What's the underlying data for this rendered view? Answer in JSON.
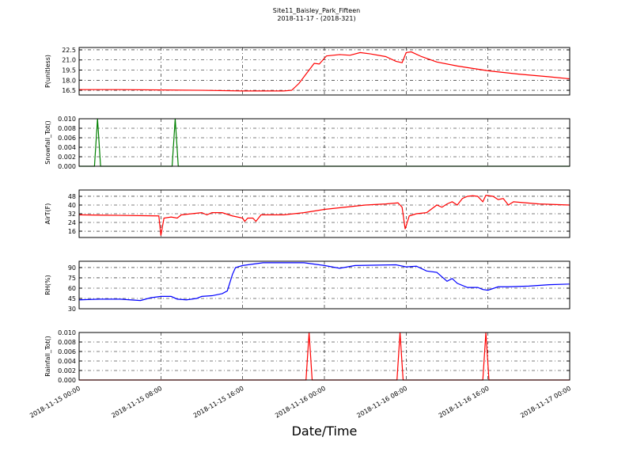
{
  "title": "Site11_Baisley_Park_Fifteen",
  "subtitle": "2018-11-17 - (2018-321)",
  "xlabel": "Date/Time",
  "xlim": [
    "2018-11-15 00:00",
    "2018-11-17 00:00"
  ],
  "xticks": [
    "2018-11-15 00:00",
    "2018-11-15 08:00",
    "2018-11-15 16:00",
    "2018-11-16 00:00",
    "2018-11-16 08:00",
    "2018-11-16 16:00",
    "2018-11-17 00:00"
  ],
  "chart_data": [
    {
      "type": "line",
      "ylabel": "P(unitless)",
      "color": "#ff0000",
      "grid": true,
      "ylim": [
        15.8,
        22.85
      ],
      "yticks": [
        {
          "value": 16.5,
          "label": "16.5"
        },
        {
          "value": 18,
          "label": "18.0"
        },
        {
          "value": 19.5,
          "label": "19.5"
        },
        {
          "value": 21,
          "label": "21.0"
        },
        {
          "value": 22.5,
          "label": "22.5"
        }
      ],
      "x": [
        "2018-11-15 00:00",
        "2018-11-15 04:00",
        "2018-11-15 08:00",
        "2018-11-15 12:00",
        "2018-11-15 16:00",
        "2018-11-15 20:00",
        "2018-11-15 20:48",
        "2018-11-15 21:30",
        "2018-11-15 22:00",
        "2018-11-15 22:30",
        "2018-11-15 23:00",
        "2018-11-15 23:30",
        "2018-11-16 00:12",
        "2018-11-16 01:30",
        "2018-11-16 02:30",
        "2018-11-16 03:30",
        "2018-11-16 04:30",
        "2018-11-16 06:00",
        "2018-11-16 07:00",
        "2018-11-16 07:36",
        "2018-11-16 08:00",
        "2018-11-16 08:30",
        "2018-11-16 09:30",
        "2018-11-16 11:00",
        "2018-11-16 13:00",
        "2018-11-16 16:00",
        "2018-11-16 19:00",
        "2018-11-16 22:00",
        "2018-11-17 00:00"
      ],
      "values": [
        16.6,
        16.6,
        16.55,
        16.5,
        16.4,
        16.4,
        16.5,
        17.5,
        18.5,
        19.5,
        20.5,
        20.4,
        21.6,
        21.8,
        21.7,
        22.1,
        21.9,
        21.5,
        20.8,
        20.6,
        22.1,
        22.2,
        21.5,
        20.7,
        20.1,
        19.4,
        18.9,
        18.5,
        18.2
      ]
    },
    {
      "type": "line",
      "ylabel": "Snowfall_Tot()",
      "color": "#008000",
      "grid": true,
      "ylim": [
        0,
        0.01
      ],
      "yticks": [
        {
          "value": 0,
          "label": "0.000"
        },
        {
          "value": 0.002,
          "label": "0.002"
        },
        {
          "value": 0.004,
          "label": "0.004"
        },
        {
          "value": 0.006,
          "label": "0.006"
        },
        {
          "value": 0.008,
          "label": "0.008"
        },
        {
          "value": 0.01,
          "label": "0.010"
        }
      ],
      "x": [
        "2018-11-15 00:00",
        "2018-11-15 01:30",
        "2018-11-15 01:48",
        "2018-11-15 02:06",
        "2018-11-15 09:06",
        "2018-11-15 09:24",
        "2018-11-15 09:42",
        "2018-11-17 00:00"
      ],
      "values": [
        0,
        0,
        0.01,
        0,
        0,
        0.01,
        0,
        0
      ]
    },
    {
      "type": "line",
      "ylabel": "AirT(F)",
      "color": "#ff0000",
      "grid": true,
      "ylim": [
        10.2,
        53.8
      ],
      "yticks": [
        16,
        24,
        32,
        40,
        48
      ],
      "x": [
        "2018-11-15 00:00",
        "2018-11-15 04:00",
        "2018-11-15 07:48",
        "2018-11-15 08:00",
        "2018-11-15 08:18",
        "2018-11-15 09:00",
        "2018-11-15 09:36",
        "2018-11-15 10:00",
        "2018-11-15 12:00",
        "2018-11-15 12:30",
        "2018-11-15 13:00",
        "2018-11-15 14:00",
        "2018-11-15 15:00",
        "2018-11-15 16:00",
        "2018-11-15 16:12",
        "2018-11-15 16:30",
        "2018-11-15 17:00",
        "2018-11-15 17:18",
        "2018-11-15 17:48",
        "2018-11-15 20:00",
        "2018-11-15 22:00",
        "2018-11-16 00:00",
        "2018-11-16 02:00",
        "2018-11-16 04:00",
        "2018-11-16 06:00",
        "2018-11-16 07:12",
        "2018-11-16 07:36",
        "2018-11-16 07:54",
        "2018-11-16 08:18",
        "2018-11-16 09:00",
        "2018-11-16 10:00",
        "2018-11-16 11:00",
        "2018-11-16 11:30",
        "2018-11-16 12:00",
        "2018-11-16 12:30",
        "2018-11-16 13:00",
        "2018-11-16 13:30",
        "2018-11-16 14:00",
        "2018-11-16 14:30",
        "2018-11-16 15:00",
        "2018-11-16 15:30",
        "2018-11-16 15:48",
        "2018-11-16 16:30",
        "2018-11-16 17:00",
        "2018-11-16 17:30",
        "2018-11-16 18:00",
        "2018-11-16 18:30",
        "2018-11-16 21:00",
        "2018-11-17 00:00"
      ],
      "values": [
        31,
        30.5,
        30,
        12,
        28,
        29,
        28,
        31,
        33,
        31,
        33,
        33,
        30,
        28,
        25,
        28,
        28,
        25,
        31,
        31,
        33,
        36,
        38,
        40,
        41,
        42,
        38,
        18,
        30,
        32,
        33,
        40,
        38,
        41,
        43,
        40,
        46,
        48,
        48.5,
        48,
        43,
        49,
        48,
        45,
        46,
        40,
        43,
        41,
        40
      ]
    },
    {
      "type": "line",
      "ylabel": "RH(%)",
      "color": "#0000ff",
      "grid": true,
      "ylim": [
        30,
        99.2
      ],
      "yticks": [
        30,
        45,
        60,
        75,
        90
      ],
      "x": [
        "2018-11-15 00:00",
        "2018-11-15 02:00",
        "2018-11-15 04:00",
        "2018-11-15 05:00",
        "2018-11-15 06:00",
        "2018-11-15 07:00",
        "2018-11-15 08:00",
        "2018-11-15 09:00",
        "2018-11-15 09:36",
        "2018-11-15 10:30",
        "2018-11-15 11:30",
        "2018-11-15 12:00",
        "2018-11-15 13:00",
        "2018-11-15 14:00",
        "2018-11-15 14:30",
        "2018-11-15 15:00",
        "2018-11-15 15:18",
        "2018-11-15 16:00",
        "2018-11-15 17:00",
        "2018-11-15 18:00",
        "2018-11-15 22:00",
        "2018-11-16 00:00",
        "2018-11-16 01:30",
        "2018-11-16 03:00",
        "2018-11-16 07:00",
        "2018-11-16 08:00",
        "2018-11-16 09:00",
        "2018-11-16 10:00",
        "2018-11-16 11:00",
        "2018-11-16 12:00",
        "2018-11-16 12:30",
        "2018-11-16 13:00",
        "2018-11-16 14:00",
        "2018-11-16 15:00",
        "2018-11-16 15:30",
        "2018-11-16 16:00",
        "2018-11-16 17:00",
        "2018-11-16 18:00",
        "2018-11-16 20:00",
        "2018-11-16 22:00",
        "2018-11-17 00:00"
      ],
      "values": [
        43,
        44,
        44,
        43,
        42,
        46,
        48,
        48,
        44,
        43,
        45,
        48,
        49,
        52,
        56,
        80,
        90,
        93,
        95,
        97,
        97,
        93,
        89,
        93,
        94,
        91,
        92,
        85,
        83,
        70,
        74,
        67,
        61,
        61,
        58,
        57,
        62,
        62,
        63,
        65,
        66
      ]
    },
    {
      "type": "line",
      "ylabel": "Rainfall_Tot()",
      "color": "#ff0000",
      "grid": true,
      "ylim": [
        0,
        0.01
      ],
      "yticks": [
        {
          "value": 0,
          "label": "0.000"
        },
        {
          "value": 0.002,
          "label": "0.002"
        },
        {
          "value": 0.004,
          "label": "0.004"
        },
        {
          "value": 0.006,
          "label": "0.006"
        },
        {
          "value": 0.008,
          "label": "0.008"
        },
        {
          "value": 0.01,
          "label": "0.010"
        }
      ],
      "x": [
        "2018-11-15 00:00",
        "2018-11-15 22:12",
        "2018-11-15 22:30",
        "2018-11-15 22:48",
        "2018-11-16 07:06",
        "2018-11-16 07:24",
        "2018-11-16 07:42",
        "2018-11-16 15:30",
        "2018-11-16 15:48",
        "2018-11-16 16:06",
        "2018-11-17 00:00"
      ],
      "values": [
        0,
        0,
        0.01,
        0,
        0,
        0.01,
        0,
        0,
        0.01,
        0,
        0
      ]
    }
  ]
}
